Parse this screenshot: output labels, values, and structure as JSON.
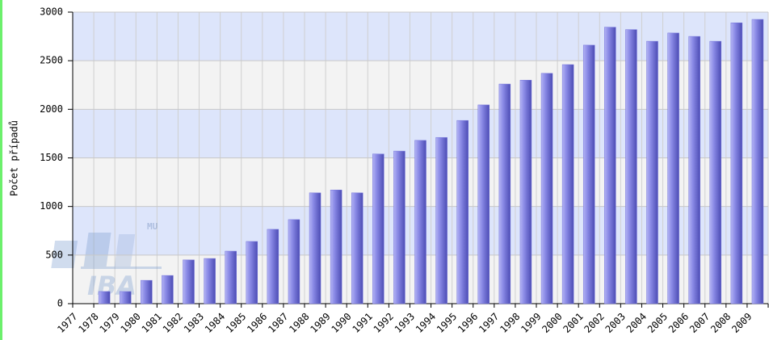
{
  "chart_data": {
    "type": "bar",
    "y_label": "Počet případů",
    "categories": [
      "1977",
      "1978",
      "1979",
      "1980",
      "1981",
      "1982",
      "1983",
      "1984",
      "1985",
      "1986",
      "1987",
      "1988",
      "1989",
      "1990",
      "1991",
      "1992",
      "1993",
      "1994",
      "1995",
      "1996",
      "1997",
      "1998",
      "1999",
      "2000",
      "2001",
      "2002",
      "2003",
      "2004",
      "2005",
      "2006",
      "2007",
      "2008",
      "2009"
    ],
    "values": [
      null,
      125,
      125,
      240,
      290,
      450,
      465,
      540,
      640,
      765,
      865,
      1140,
      1170,
      1140,
      1540,
      1570,
      1680,
      1710,
      1885,
      2045,
      2260,
      2300,
      2370,
      2460,
      2660,
      2845,
      2820,
      2700,
      2785,
      2750,
      2700,
      2890,
      2925
    ],
    "color": "#7474dc",
    "ylim": [
      0,
      3000
    ],
    "yticks": [
      0,
      500,
      1000,
      1500,
      2000,
      2500,
      3000
    ],
    "grid": true
  },
  "watermark": {
    "small": "MU",
    "large": "IBA"
  }
}
